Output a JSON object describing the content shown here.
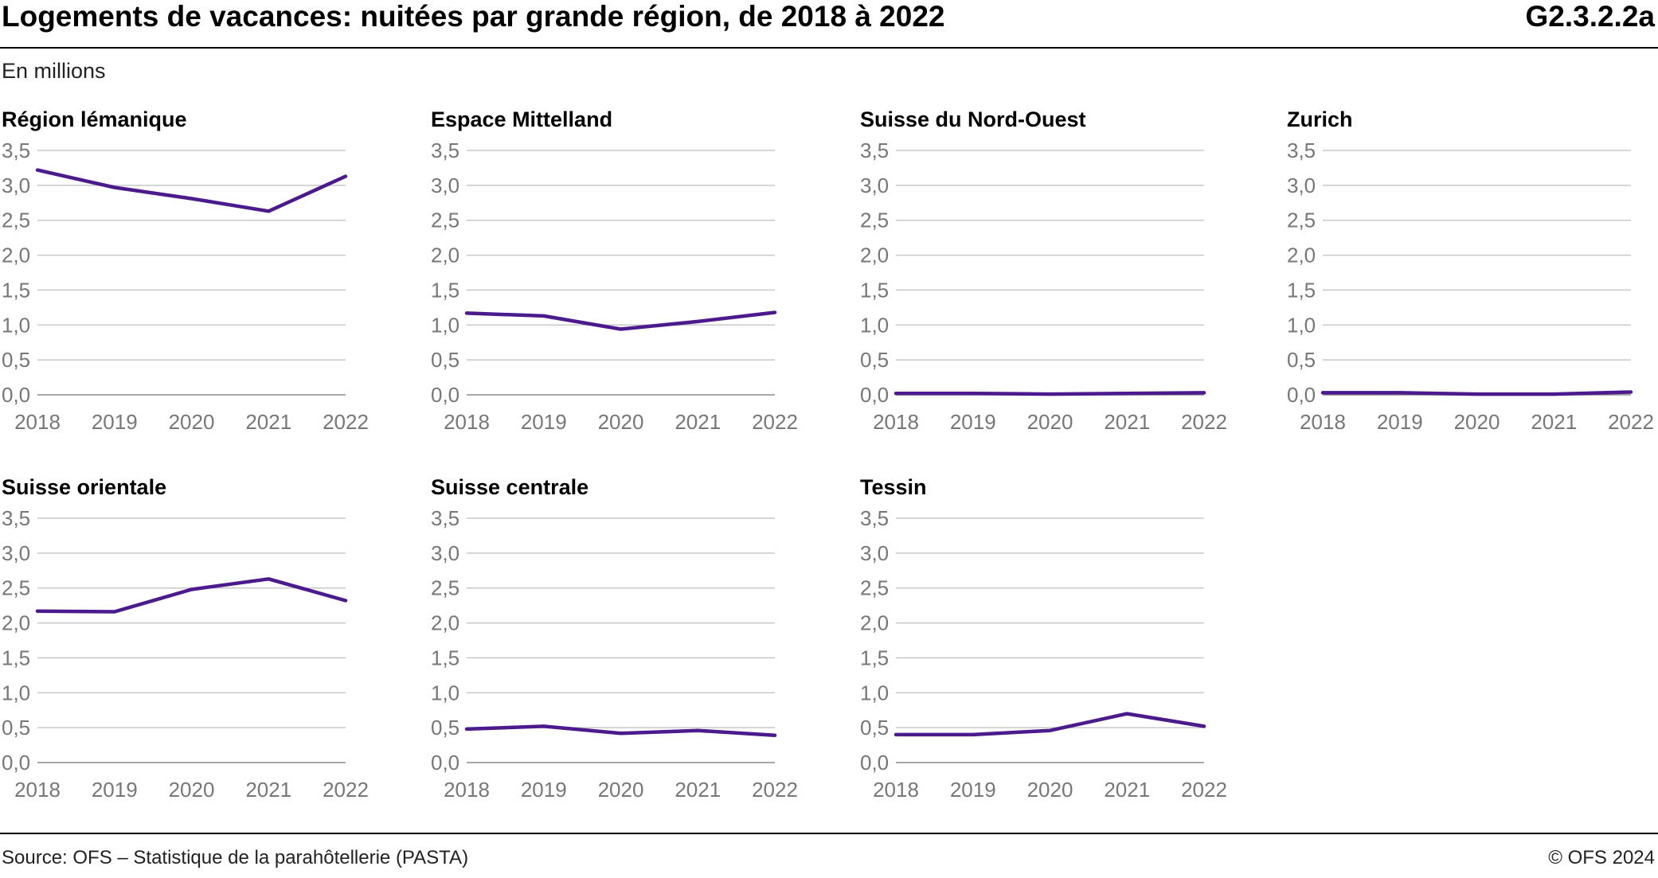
{
  "header": {
    "title": "Logements de vacances: nuitées par grande région, de 2018 à 2022",
    "code": "G2.3.2.2a"
  },
  "subtitle": "En millions",
  "footer": {
    "source": "Source: OFS – Statistique de la parahôtellerie (PASTA)",
    "copyright": "© OFS 2024"
  },
  "colors": {
    "line": "#4b1a8c"
  },
  "chart_data": [
    {
      "type": "line",
      "title": "Région lémanique",
      "x": [
        "2018",
        "2019",
        "2020",
        "2021",
        "2022"
      ],
      "values": [
        3.22,
        2.97,
        2.81,
        2.63,
        3.13
      ],
      "ylim": [
        0,
        3.5
      ],
      "yticks": [
        "0,0",
        "0,5",
        "1,0",
        "1,5",
        "2,0",
        "2,5",
        "3,0",
        "3,5"
      ],
      "grid": true
    },
    {
      "type": "line",
      "title": "Espace Mittelland",
      "x": [
        "2018",
        "2019",
        "2020",
        "2021",
        "2022"
      ],
      "values": [
        1.17,
        1.13,
        0.94,
        1.05,
        1.18
      ],
      "ylim": [
        0,
        3.5
      ],
      "yticks": [
        "0,0",
        "0,5",
        "1,0",
        "1,5",
        "2,0",
        "2,5",
        "3,0",
        "3,5"
      ],
      "grid": true
    },
    {
      "type": "line",
      "title": "Suisse du Nord-Ouest",
      "x": [
        "2018",
        "2019",
        "2020",
        "2021",
        "2022"
      ],
      "values": [
        0.02,
        0.02,
        0.01,
        0.02,
        0.03
      ],
      "ylim": [
        0,
        3.5
      ],
      "yticks": [
        "0,0",
        "0,5",
        "1,0",
        "1,5",
        "2,0",
        "2,5",
        "3,0",
        "3,5"
      ],
      "grid": true
    },
    {
      "type": "line",
      "title": "Zurich",
      "x": [
        "2018",
        "2019",
        "2020",
        "2021",
        "2022"
      ],
      "values": [
        0.03,
        0.03,
        0.01,
        0.01,
        0.04
      ],
      "ylim": [
        0,
        3.5
      ],
      "yticks": [
        "0,0",
        "0,5",
        "1,0",
        "1,5",
        "2,0",
        "2,5",
        "3,0",
        "3,5"
      ],
      "grid": true
    },
    {
      "type": "line",
      "title": "Suisse orientale",
      "x": [
        "2018",
        "2019",
        "2020",
        "2021",
        "2022"
      ],
      "values": [
        2.17,
        2.16,
        2.48,
        2.63,
        2.32
      ],
      "ylim": [
        0,
        3.5
      ],
      "yticks": [
        "0,0",
        "0,5",
        "1,0",
        "1,5",
        "2,0",
        "2,5",
        "3,0",
        "3,5"
      ],
      "grid": true
    },
    {
      "type": "line",
      "title": "Suisse centrale",
      "x": [
        "2018",
        "2019",
        "2020",
        "2021",
        "2022"
      ],
      "values": [
        0.48,
        0.52,
        0.42,
        0.46,
        0.39
      ],
      "ylim": [
        0,
        3.5
      ],
      "yticks": [
        "0,0",
        "0,5",
        "1,0",
        "1,5",
        "2,0",
        "2,5",
        "3,0",
        "3,5"
      ],
      "grid": true
    },
    {
      "type": "line",
      "title": "Tessin",
      "x": [
        "2018",
        "2019",
        "2020",
        "2021",
        "2022"
      ],
      "values": [
        0.4,
        0.4,
        0.46,
        0.7,
        0.52
      ],
      "ylim": [
        0,
        3.5
      ],
      "yticks": [
        "0,0",
        "0,5",
        "1,0",
        "1,5",
        "2,0",
        "2,5",
        "3,0",
        "3,5"
      ],
      "grid": true
    }
  ]
}
